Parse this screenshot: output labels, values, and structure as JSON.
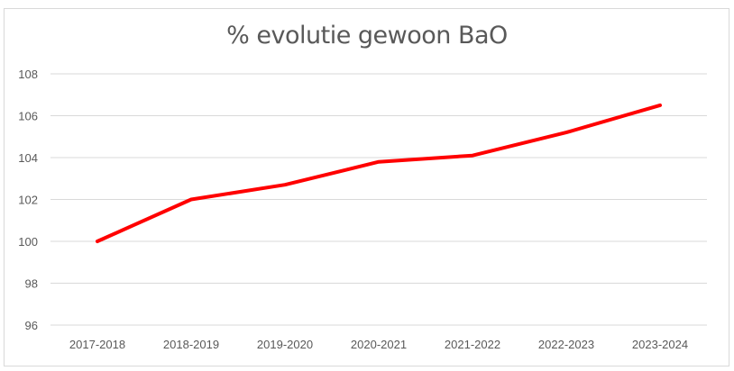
{
  "chart_data": {
    "type": "line",
    "title": "% evolutie gewoon BaO",
    "xlabel": "",
    "ylabel": "",
    "categories": [
      "2017-2018",
      "2018-2019",
      "2019-2020",
      "2020-2021",
      "2021-2022",
      "2022-2023",
      "2023-2024"
    ],
    "series": [
      {
        "name": "% evolutie gewoon BaO",
        "color": "#ff0000",
        "values": [
          100.0,
          102.0,
          102.7,
          103.8,
          104.1,
          105.2,
          106.5
        ]
      }
    ],
    "ylim": [
      96,
      108
    ],
    "yticks": [
      96,
      98,
      100,
      102,
      104,
      106,
      108
    ],
    "grid": true,
    "legend": "none"
  },
  "colors": {
    "line": "#ff0000",
    "grid": "#d9d9d9",
    "text": "#595959",
    "border": "#d9d9d9"
  }
}
